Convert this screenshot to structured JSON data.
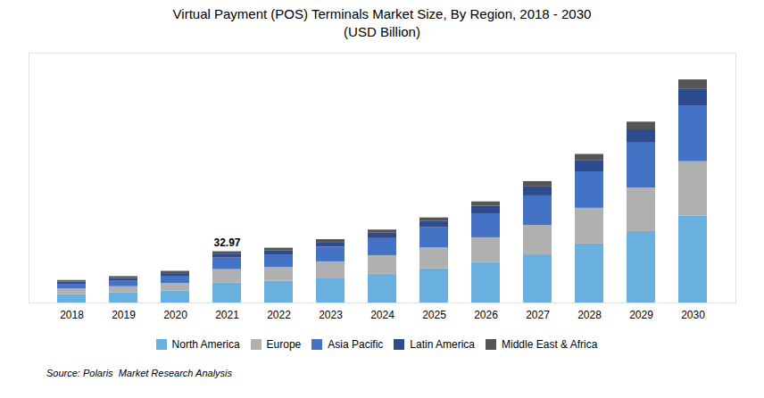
{
  "chart_data": {
    "type": "bar",
    "stacked": true,
    "title": "Virtual Payment (POS) Terminals Market Size, By Region, 2018 - 2030\n(USD Billion)",
    "categories": [
      "2018",
      "2019",
      "2020",
      "2021",
      "2022",
      "2023",
      "2024",
      "2025",
      "2026",
      "2027",
      "2028",
      "2029",
      "2030"
    ],
    "series": [
      {
        "name": "North America",
        "color": "#6ab0de",
        "values": [
          5.5,
          6.5,
          7.8,
          13.0,
          14.0,
          16.0,
          18.5,
          22.0,
          26.0,
          31.0,
          38.0,
          46.0,
          56.0
        ]
      },
      {
        "name": "Europe",
        "color": "#b0b0b0",
        "values": [
          3.5,
          4.0,
          4.8,
          8.5,
          9.0,
          10.5,
          12.0,
          13.5,
          16.0,
          19.0,
          23.0,
          28.0,
          35.0
        ]
      },
      {
        "name": "Asia Pacific",
        "color": "#4472c4",
        "values": [
          3.0,
          3.5,
          4.2,
          7.5,
          8.0,
          9.5,
          11.0,
          13.0,
          15.5,
          19.0,
          23.5,
          29.0,
          36.0
        ]
      },
      {
        "name": "Latin America",
        "color": "#2e4b8f",
        "values": [
          1.5,
          1.8,
          2.1,
          2.5,
          2.7,
          3.0,
          3.5,
          4.0,
          4.8,
          5.8,
          7.0,
          8.5,
          10.5
        ]
      },
      {
        "name": "Middle East & Africa",
        "color": "#555555",
        "values": [
          1.0,
          1.2,
          1.5,
          1.5,
          1.6,
          1.8,
          2.0,
          2.3,
          2.8,
          3.4,
          4.2,
          5.0,
          6.2
        ]
      }
    ],
    "annotations": [
      {
        "x": "2021",
        "text": "32.97"
      }
    ],
    "caption": "Source: Polaris  Market Research Analysis",
    "ylim": [
      0,
      160.944
    ],
    "tick_labels": "x",
    "grid": false,
    "legend": "bottom"
  }
}
